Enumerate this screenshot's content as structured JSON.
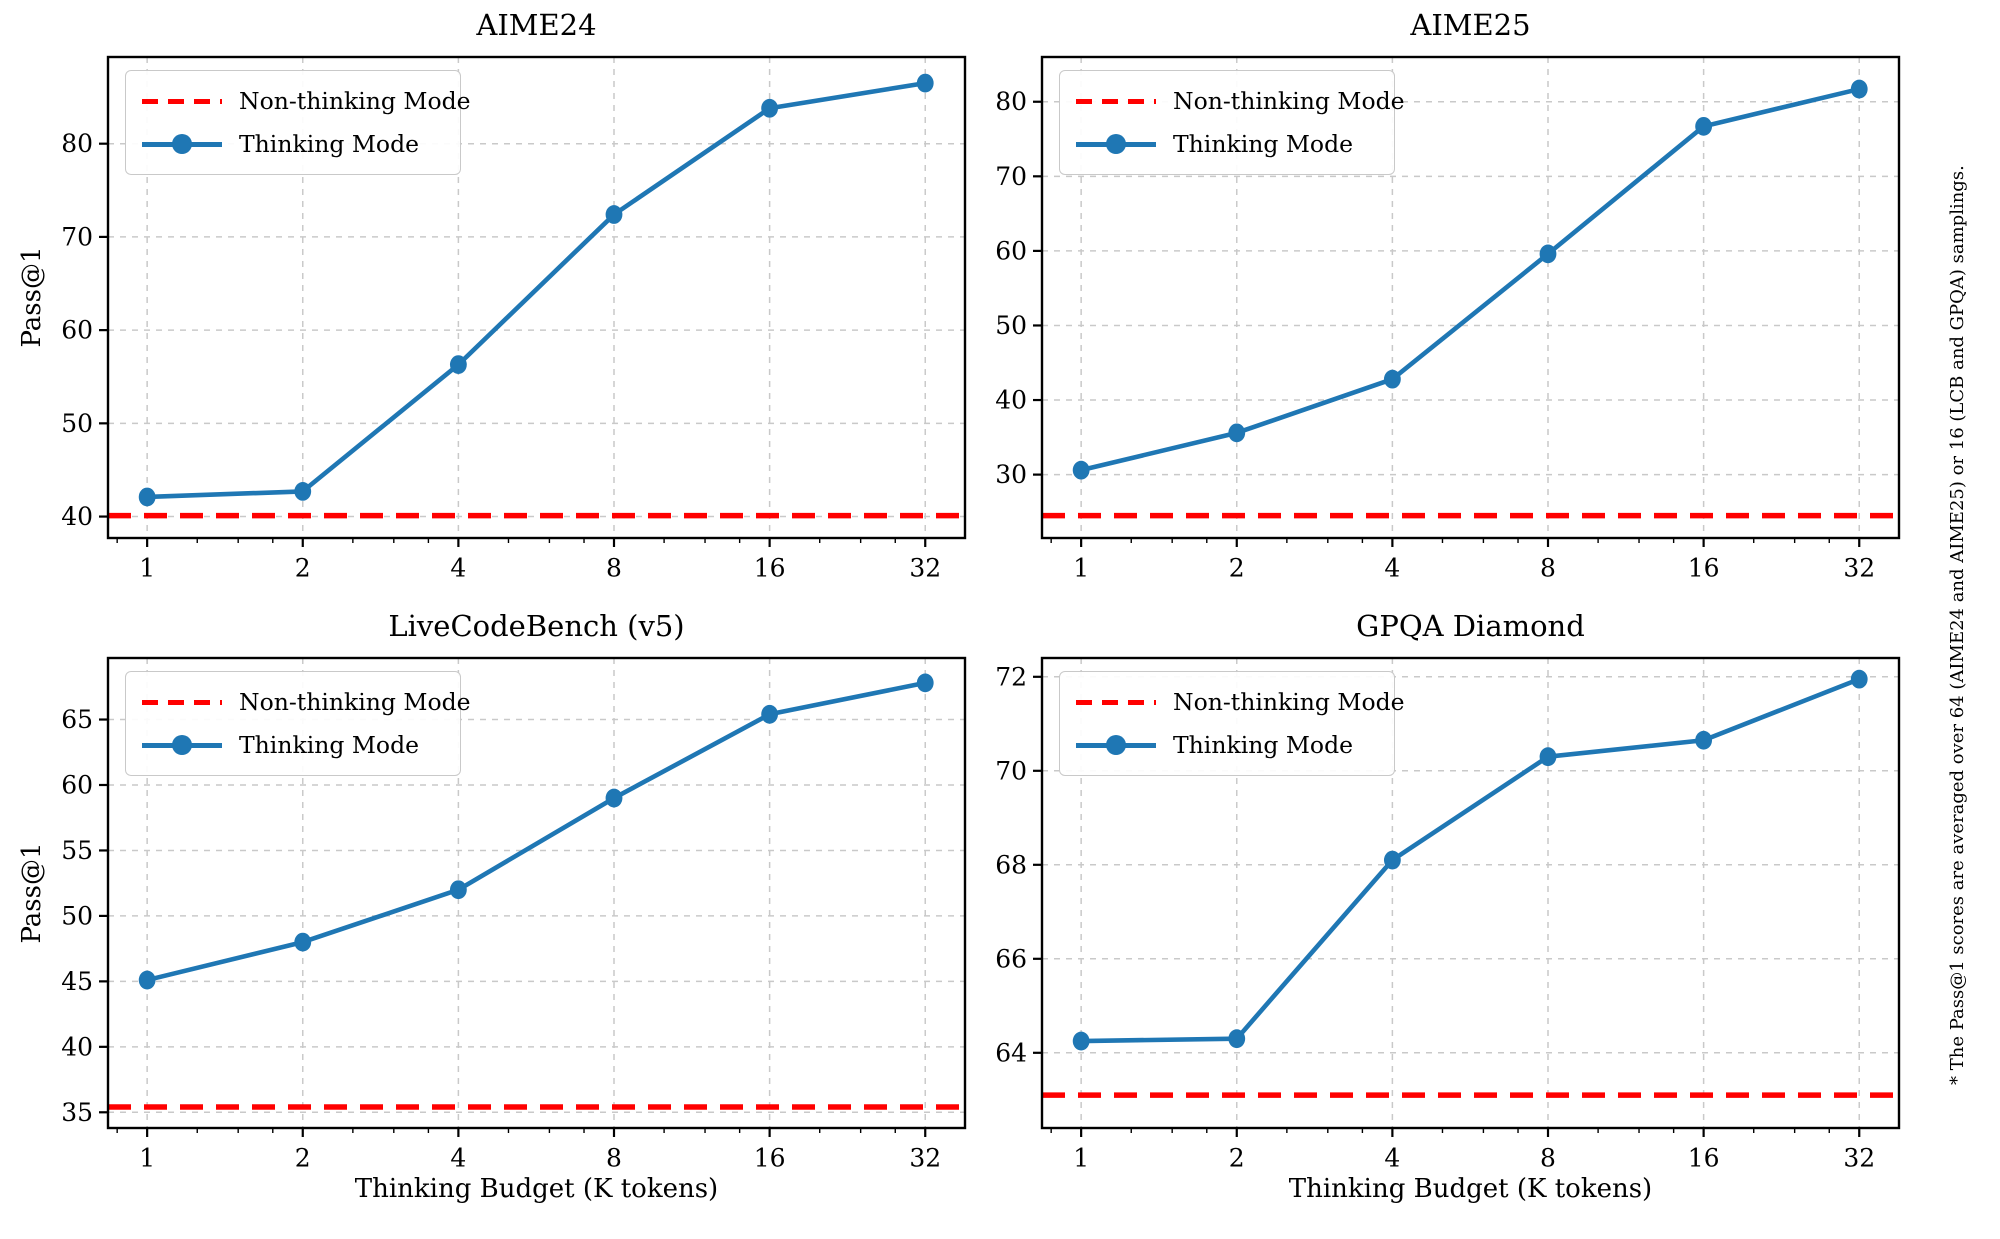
{
  "figure": {
    "xlabel": "Thinking Budget (K tokens)",
    "ylabel": "Pass@1",
    "side_note": "* The Pass@1 scores are averaged over 64 (AIME24 and AIME25) or 16 (LCB and GPQA) samplings.",
    "legend": [
      {
        "name": "Non-thinking Mode",
        "style": "dashed",
        "color": "#ff0000"
      },
      {
        "name": "Thinking Mode",
        "style": "line-marker",
        "color": "#1f77b4"
      }
    ],
    "colors": {
      "thinking": "#1f77b4",
      "non_thinking": "#ff0000",
      "grid": "#c9c9c9",
      "frame": "#000000",
      "text": "#000000",
      "background": "#ffffff"
    }
  },
  "chart_data": [
    {
      "type": "line",
      "title": "AIME24",
      "xscale": "log2",
      "x": [
        1,
        2,
        4,
        8,
        16,
        32
      ],
      "xtick_labels": [
        "1",
        "2",
        "4",
        "8",
        "16",
        "32"
      ],
      "series": [
        {
          "name": "Thinking Mode",
          "values": [
            42.1,
            42.7,
            56.3,
            72.4,
            83.8,
            86.5
          ]
        }
      ],
      "baseline": {
        "name": "Non-thinking Mode",
        "value": 40.1
      },
      "yticks": [
        40,
        50,
        60,
        70,
        80
      ],
      "ylim": [
        37.7,
        89.3
      ],
      "xlim": [
        0.84,
        38.2
      ],
      "xlabel": "",
      "ylabel": "Pass@1",
      "grid": true,
      "legend_position": "upper left"
    },
    {
      "type": "line",
      "title": "AIME25",
      "xscale": "log2",
      "x": [
        1,
        2,
        4,
        8,
        16,
        32
      ],
      "xtick_labels": [
        "1",
        "2",
        "4",
        "8",
        "16",
        "32"
      ],
      "series": [
        {
          "name": "Thinking Mode",
          "values": [
            30.6,
            35.6,
            42.8,
            59.6,
            76.7,
            81.7
          ]
        }
      ],
      "baseline": {
        "name": "Non-thinking Mode",
        "value": 24.5
      },
      "yticks": [
        30,
        40,
        50,
        60,
        70,
        80
      ],
      "ylim": [
        21.5,
        86.0
      ],
      "xlim": [
        0.84,
        38.2
      ],
      "xlabel": "",
      "ylabel": "",
      "grid": true,
      "legend_position": "upper left"
    },
    {
      "type": "line",
      "title": "LiveCodeBench (v5)",
      "xscale": "log2",
      "x": [
        1,
        2,
        4,
        8,
        16,
        32
      ],
      "xtick_labels": [
        "1",
        "2",
        "4",
        "8",
        "16",
        "32"
      ],
      "series": [
        {
          "name": "Thinking Mode",
          "values": [
            45.1,
            48.0,
            52.0,
            59.0,
            65.4,
            67.8
          ]
        }
      ],
      "baseline": {
        "name": "Non-thinking Mode",
        "value": 35.4
      },
      "yticks": [
        35,
        40,
        45,
        50,
        55,
        60,
        65
      ],
      "ylim": [
        33.8,
        69.7
      ],
      "xlim": [
        0.84,
        38.2
      ],
      "xlabel": "Thinking Budget (K tokens)",
      "ylabel": "Pass@1",
      "grid": true,
      "legend_position": "upper left"
    },
    {
      "type": "line",
      "title": "GPQA Diamond",
      "xscale": "log2",
      "x": [
        1,
        2,
        4,
        8,
        16,
        32
      ],
      "xtick_labels": [
        "1",
        "2",
        "4",
        "8",
        "16",
        "32"
      ],
      "series": [
        {
          "name": "Thinking Mode",
          "values": [
            64.25,
            64.3,
            68.1,
            70.3,
            70.65,
            71.95
          ]
        }
      ],
      "baseline": {
        "name": "Non-thinking Mode",
        "value": 63.1
      },
      "yticks": [
        64,
        66,
        68,
        70,
        72
      ],
      "ylim": [
        62.4,
        72.4
      ],
      "xlim": [
        0.84,
        38.2
      ],
      "xlabel": "Thinking Budget (K tokens)",
      "ylabel": "",
      "grid": true,
      "legend_position": "upper left"
    }
  ]
}
